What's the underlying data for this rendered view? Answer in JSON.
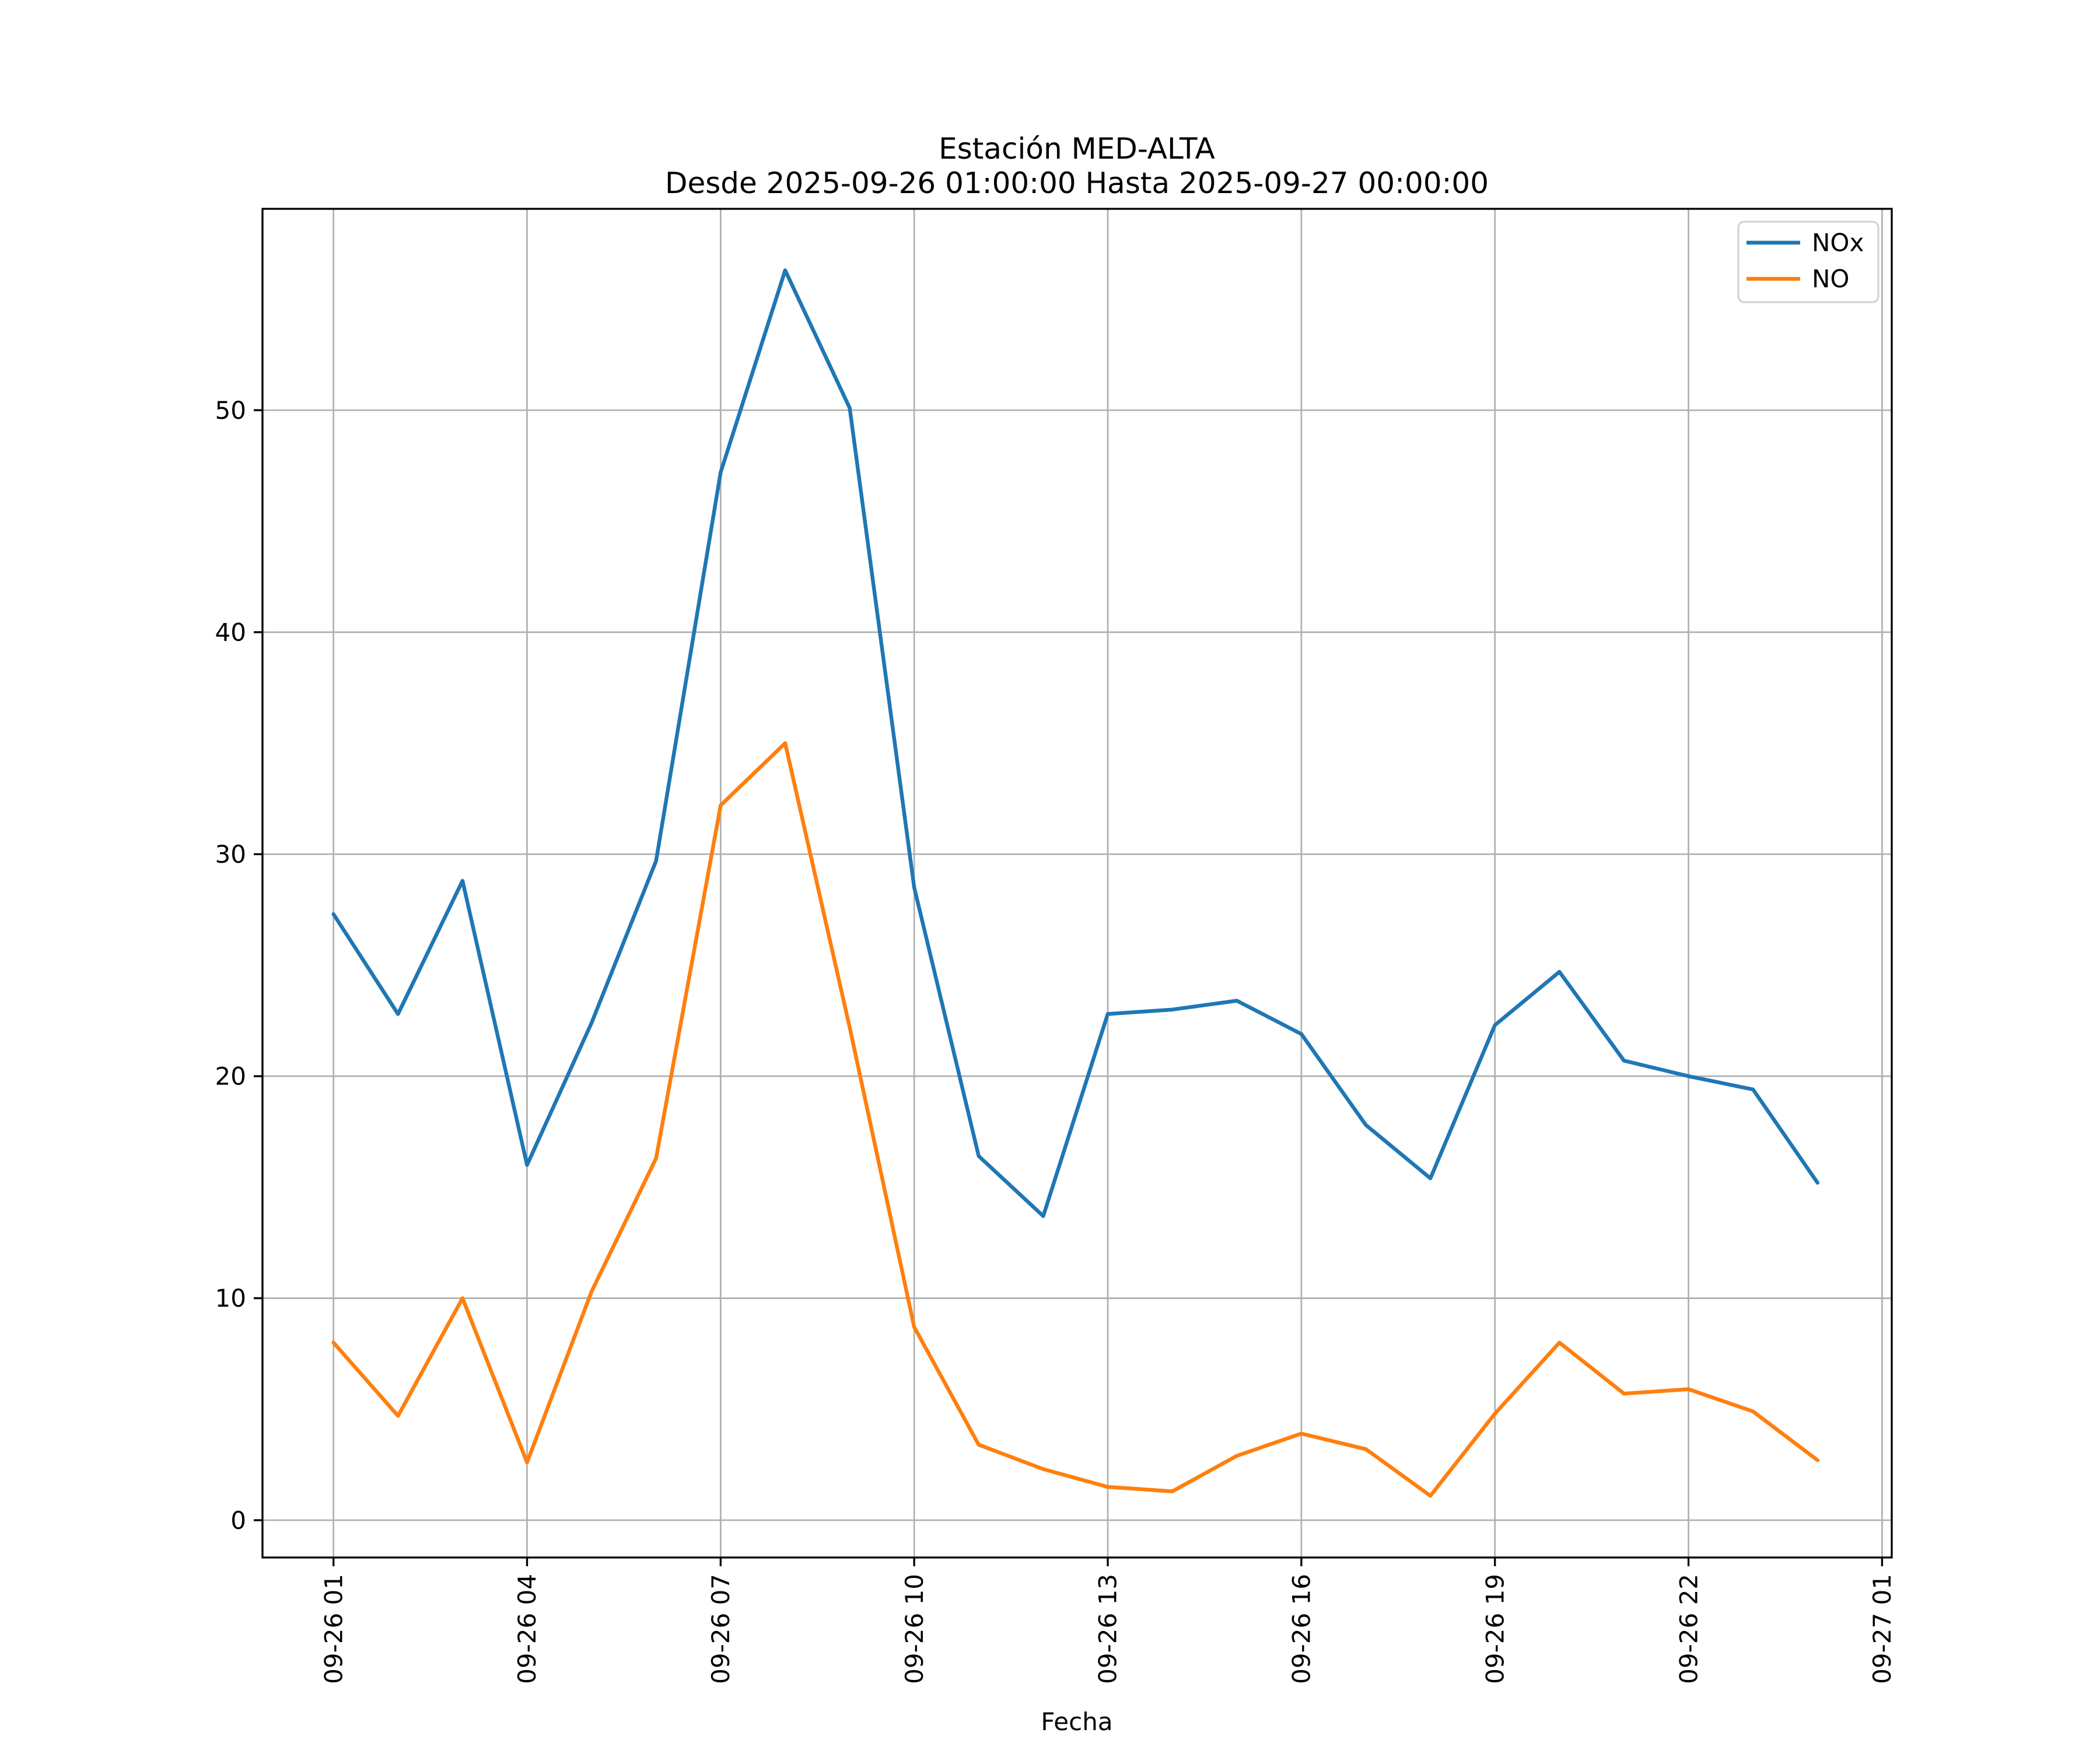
{
  "title": {
    "line1": "Estación MED-ALTA",
    "line2": "Desde 2025-09-26 01:00:00 Hasta 2025-09-27 00:00:00"
  },
  "axes": {
    "xlabel": "Fecha",
    "x_tick_labels": [
      "09-26 01",
      "09-26 04",
      "09-26 07",
      "09-26 10",
      "09-26 13",
      "09-26 16",
      "09-26 19",
      "09-26 22",
      "09-27 01"
    ],
    "y_tick_labels": [
      "0",
      "10",
      "20",
      "30",
      "40",
      "50"
    ]
  },
  "legend": [
    {
      "label": "NOx",
      "color": "#1f77b4"
    },
    {
      "label": "NO",
      "color": "#ff7f0e"
    }
  ],
  "colors": {
    "grid": "#b0b0b0",
    "spine": "#000000",
    "background": "#ffffff",
    "legend_border": "#d0d0d0"
  },
  "chart_data": {
    "type": "line",
    "title": "Estación MED-ALTA",
    "subtitle": "Desde 2025-09-26 01:00:00 Hasta 2025-09-27 00:00:00",
    "xlabel": "Fecha",
    "ylabel": "",
    "x_hours": [
      1,
      2,
      3,
      4,
      5,
      6,
      7,
      8,
      9,
      10,
      11,
      12,
      13,
      14,
      15,
      16,
      17,
      18,
      19,
      20,
      21,
      22,
      23,
      24
    ],
    "x_times": [
      "2025-09-26 01:00",
      "2025-09-26 02:00",
      "2025-09-26 03:00",
      "2025-09-26 04:00",
      "2025-09-26 05:00",
      "2025-09-26 06:00",
      "2025-09-26 07:00",
      "2025-09-26 08:00",
      "2025-09-26 09:00",
      "2025-09-26 10:00",
      "2025-09-26 11:00",
      "2025-09-26 12:00",
      "2025-09-26 13:00",
      "2025-09-26 14:00",
      "2025-09-26 15:00",
      "2025-09-26 16:00",
      "2025-09-26 17:00",
      "2025-09-26 18:00",
      "2025-09-26 19:00",
      "2025-09-26 20:00",
      "2025-09-26 21:00",
      "2025-09-26 22:00",
      "2025-09-26 23:00",
      "2025-09-27 00:00"
    ],
    "series": [
      {
        "name": "NOx",
        "color": "#1f77b4",
        "values": [
          27.3,
          22.8,
          28.8,
          16.0,
          22.4,
          29.7,
          47.2,
          56.3,
          50.1,
          28.5,
          16.4,
          13.7,
          22.8,
          23.0,
          23.4,
          21.9,
          17.8,
          15.4,
          22.3,
          24.7,
          20.7,
          20.0,
          19.4,
          15.2
        ]
      },
      {
        "name": "NO",
        "color": "#ff7f0e",
        "values": [
          8.0,
          4.7,
          10.0,
          2.6,
          10.3,
          16.3,
          32.2,
          35.0,
          22.2,
          8.7,
          3.4,
          2.3,
          1.5,
          1.3,
          2.9,
          3.9,
          3.2,
          1.1,
          4.8,
          8.0,
          5.7,
          5.9,
          4.9,
          2.7
        ]
      }
    ],
    "x_ticks": {
      "hours": [
        1,
        4,
        7,
        10,
        13,
        16,
        19,
        22,
        25
      ]
    },
    "y_ticks": [
      0,
      10,
      20,
      30,
      40,
      50
    ],
    "xlim": [
      -0.1,
      25.15
    ],
    "ylim": [
      -1.68,
      59.07
    ],
    "grid": true,
    "legend_position": "upper right"
  }
}
